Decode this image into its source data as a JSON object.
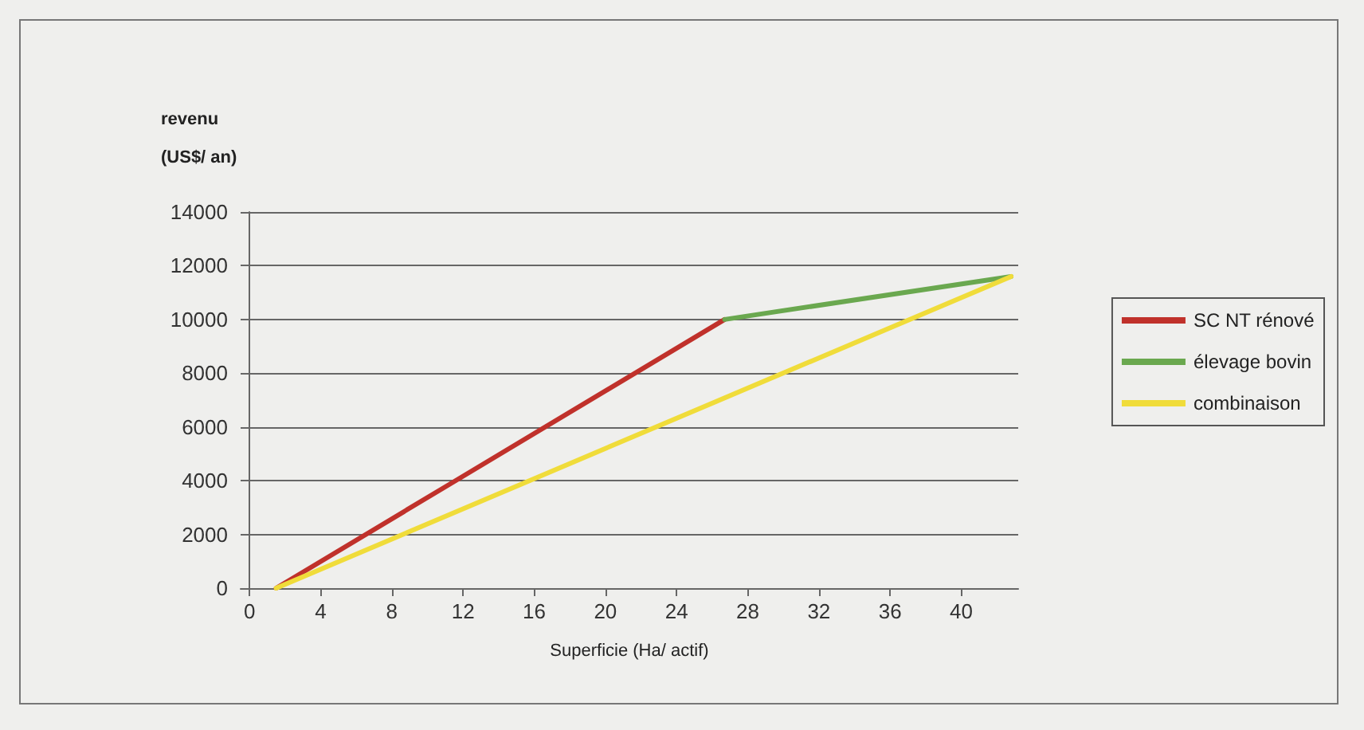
{
  "chart_data": {
    "type": "line",
    "ylabel": "revenu\n(US$/ an)",
    "xlabel": "Superficie (Ha/ actif)",
    "series": [
      {
        "name": "SC NT rénové",
        "color": "#c0312b",
        "x": [
          1.5,
          11.2,
          26.7
        ],
        "values": [
          0,
          3850,
          10000
        ]
      },
      {
        "name": "élevage bovin",
        "color": "#6aa84f",
        "x": [
          26.7,
          42.8
        ],
        "values": [
          10000,
          11600
        ]
      },
      {
        "name": "combinaison",
        "color": "#f0dc3a",
        "x": [
          1.5,
          15.2,
          42.8
        ],
        "values": [
          0,
          3850,
          11600
        ]
      }
    ],
    "xlim": [
      -0.5,
      43.2
    ],
    "xticks": [
      0,
      4,
      8,
      12,
      16,
      20,
      24,
      28,
      32,
      36,
      40
    ],
    "ylim": [
      0,
      14000
    ],
    "yticks": [
      0,
      2000,
      4000,
      6000,
      8000,
      10000,
      12000,
      14000
    ],
    "grid": "y",
    "legend": "right",
    "marker": "none",
    "line_style": "solid"
  }
}
